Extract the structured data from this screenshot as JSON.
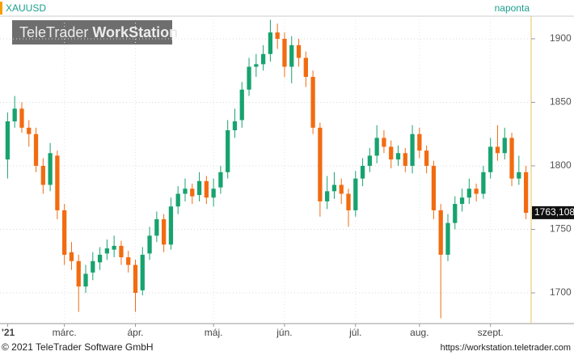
{
  "chart_data": {
    "type": "candlestick",
    "symbol": "XAUUSD",
    "period": "naponta",
    "watermark_light": "TeleTrader",
    "watermark_bold": "WorkStation",
    "copyright": "© 2021 TeleTrader Software GmbH",
    "url": "https://workstation.teletrader.com",
    "categories": [
      "'21",
      null,
      null,
      null,
      null,
      null,
      null,
      null,
      "márc.",
      null,
      null,
      null,
      null,
      null,
      null,
      null,
      null,
      null,
      "ápr.",
      null,
      null,
      null,
      null,
      null,
      null,
      null,
      null,
      null,
      null,
      "máj.",
      null,
      null,
      null,
      null,
      null,
      null,
      null,
      null,
      null,
      "jún.",
      null,
      null,
      null,
      null,
      null,
      null,
      null,
      null,
      null,
      "júl.",
      null,
      null,
      null,
      null,
      null,
      null,
      null,
      null,
      "aug.",
      null,
      null,
      null,
      null,
      null,
      null,
      null,
      null,
      null,
      "szept.",
      null,
      null,
      null,
      null,
      null
    ],
    "open": [
      1805,
      1835,
      1845,
      1830,
      1825,
      1800,
      1785,
      1808,
      1765,
      1732,
      1725,
      1705,
      1716,
      1724,
      1731,
      1734,
      1737,
      1728,
      1722,
      1702,
      1731,
      1745,
      1758,
      1738,
      1768,
      1778,
      1782,
      1777,
      1788,
      1775,
      1783,
      1795,
      1828,
      1836,
      1860,
      1878,
      1880,
      1888,
      1905,
      1900,
      1878,
      1895,
      1885,
      1870,
      1830,
      1772,
      1780,
      1785,
      1778,
      1765,
      1790,
      1800,
      1808,
      1822,
      1815,
      1805,
      1810,
      1800,
      1825,
      1812,
      1800,
      1765,
      1730,
      1755,
      1770,
      1775,
      1782,
      1778,
      1795,
      1815,
      1810,
      1822,
      1790,
      1795
    ],
    "high": [
      1842,
      1855,
      1850,
      1836,
      1830,
      1806,
      1818,
      1812,
      1770,
      1740,
      1730,
      1722,
      1732,
      1736,
      1742,
      1745,
      1741,
      1733,
      1726,
      1736,
      1752,
      1764,
      1762,
      1775,
      1784,
      1790,
      1786,
      1795,
      1792,
      1790,
      1800,
      1836,
      1845,
      1866,
      1885,
      1888,
      1895,
      1915,
      1912,
      1905,
      1902,
      1900,
      1890,
      1875,
      1834,
      1792,
      1795,
      1790,
      1782,
      1796,
      1806,
      1814,
      1832,
      1828,
      1820,
      1816,
      1814,
      1832,
      1830,
      1816,
      1804,
      1770,
      1762,
      1776,
      1782,
      1790,
      1786,
      1800,
      1822,
      1832,
      1830,
      1826,
      1808,
      1800
    ],
    "low": [
      1790,
      1830,
      1826,
      1815,
      1795,
      1778,
      1780,
      1758,
      1722,
      1718,
      1685,
      1700,
      1710,
      1718,
      1726,
      1728,
      1722,
      1716,
      1685,
      1698,
      1726,
      1740,
      1732,
      1734,
      1762,
      1772,
      1770,
      1772,
      1770,
      1768,
      1778,
      1790,
      1822,
      1830,
      1855,
      1870,
      1875,
      1882,
      1892,
      1870,
      1865,
      1878,
      1862,
      1825,
      1760,
      1766,
      1774,
      1770,
      1752,
      1760,
      1784,
      1795,
      1802,
      1810,
      1798,
      1800,
      1795,
      1794,
      1806,
      1794,
      1758,
      1680,
      1725,
      1750,
      1764,
      1770,
      1772,
      1774,
      1790,
      1804,
      1805,
      1784,
      1785,
      1758
    ],
    "close": [
      1835,
      1845,
      1830,
      1825,
      1800,
      1785,
      1810,
      1765,
      1730,
      1725,
      1705,
      1715,
      1725,
      1730,
      1735,
      1737,
      1728,
      1722,
      1700,
      1730,
      1745,
      1758,
      1738,
      1768,
      1778,
      1782,
      1776,
      1788,
      1775,
      1782,
      1795,
      1828,
      1835,
      1860,
      1878,
      1880,
      1888,
      1905,
      1900,
      1878,
      1895,
      1885,
      1870,
      1830,
      1772,
      1780,
      1785,
      1778,
      1765,
      1790,
      1800,
      1808,
      1822,
      1815,
      1805,
      1810,
      1800,
      1825,
      1812,
      1800,
      1765,
      1730,
      1755,
      1770,
      1775,
      1782,
      1778,
      1795,
      1815,
      1810,
      1822,
      1790,
      1795,
      1763
    ],
    "up_color": "#17a36f",
    "down_color": "#f26b10",
    "ylim": [
      1675.8,
      1917.8
    ],
    "yticks": [
      1700,
      1750,
      1800,
      1850,
      1900
    ],
    "grid": true,
    "last_price": {
      "value": 1763.108,
      "label": "1763,108"
    }
  }
}
